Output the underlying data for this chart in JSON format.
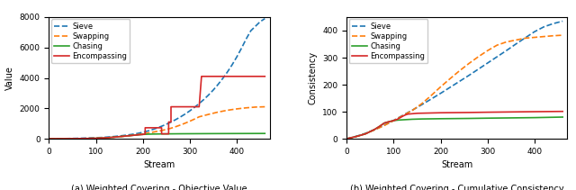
{
  "left": {
    "title": "(a) Weighted Covering - Objective Value",
    "xlabel": "Stream",
    "ylabel": "Value",
    "xlim": [
      0,
      470
    ],
    "ylim": [
      0,
      8000
    ],
    "xticks": [
      0,
      100,
      200,
      300,
      400
    ],
    "yticks": [
      0,
      2000,
      4000,
      6000,
      8000
    ],
    "sieve": {
      "x": [
        0,
        10,
        20,
        30,
        40,
        50,
        60,
        70,
        80,
        90,
        100,
        110,
        120,
        130,
        140,
        150,
        160,
        170,
        180,
        190,
        200,
        210,
        220,
        230,
        240,
        250,
        260,
        270,
        280,
        290,
        300,
        310,
        320,
        330,
        340,
        350,
        360,
        370,
        380,
        390,
        400,
        410,
        420,
        430,
        440,
        450,
        460
      ],
      "y": [
        0,
        2,
        5,
        9,
        14,
        20,
        27,
        35,
        44,
        54,
        65,
        77,
        97,
        120,
        148,
        180,
        215,
        255,
        300,
        355,
        420,
        500,
        595,
        700,
        820,
        950,
        1095,
        1255,
        1430,
        1620,
        1830,
        2060,
        2310,
        2580,
        2875,
        3200,
        3560,
        3950,
        4380,
        4850,
        5370,
        5940,
        6550,
        7100,
        7400,
        7700,
        7900
      ],
      "color": "#1f77b4",
      "linestyle": "dashed",
      "linewidth": 1.2
    },
    "swapping": {
      "x": [
        0,
        20,
        40,
        60,
        80,
        100,
        120,
        130,
        140,
        150,
        160,
        170,
        180,
        190,
        200,
        210,
        220,
        230,
        240,
        250,
        260,
        270,
        280,
        290,
        300,
        310,
        320,
        340,
        360,
        380,
        400,
        420,
        440,
        460
      ],
      "y": [
        0,
        2,
        5,
        10,
        18,
        30,
        55,
        75,
        100,
        130,
        160,
        195,
        235,
        275,
        320,
        370,
        420,
        480,
        540,
        610,
        690,
        790,
        900,
        1020,
        1150,
        1290,
        1440,
        1600,
        1750,
        1870,
        1960,
        2030,
        2080,
        2100
      ],
      "color": "#ff7f0e",
      "linestyle": "dashed",
      "linewidth": 1.2
    },
    "chasing": {
      "x": [
        0,
        20,
        40,
        60,
        80,
        100,
        110,
        120,
        130,
        140,
        150,
        160,
        170,
        180,
        190,
        200,
        210,
        220,
        230,
        240,
        260,
        280,
        300,
        350,
        400,
        460
      ],
      "y": [
        0,
        2,
        4,
        8,
        15,
        28,
        40,
        58,
        80,
        105,
        135,
        165,
        195,
        225,
        255,
        280,
        295,
        305,
        310,
        315,
        320,
        325,
        328,
        335,
        340,
        345
      ],
      "color": "#2ca02c",
      "linestyle": "solid",
      "linewidth": 1.2
    },
    "encompassing": {
      "x": [
        0,
        20,
        40,
        60,
        80,
        100,
        110,
        120,
        130,
        140,
        150,
        160,
        170,
        180,
        190,
        200,
        200,
        205,
        205,
        240,
        240,
        255,
        255,
        260,
        260,
        320,
        320,
        325,
        325,
        390,
        390,
        460
      ],
      "y": [
        0,
        2,
        4,
        8,
        15,
        28,
        40,
        58,
        80,
        105,
        135,
        165,
        195,
        225,
        255,
        280,
        295,
        295,
        720,
        720,
        320,
        320,
        1100,
        1100,
        2100,
        2100,
        2100,
        4100,
        4100,
        4100,
        4100,
        4100
      ],
      "color": "#d62728",
      "linestyle": "solid",
      "linewidth": 1.2
    },
    "legend_labels": [
      "Sieve",
      "Swapping",
      "Chasing",
      "Encompassing"
    ]
  },
  "right": {
    "title": "(b) Weighted Covering - Cumulative Consistency",
    "xlabel": "Stream",
    "ylabel": "Consistency",
    "xlim": [
      0,
      470
    ],
    "ylim": [
      0,
      450
    ],
    "xticks": [
      0,
      100,
      200,
      300,
      400
    ],
    "yticks": [
      0,
      100,
      200,
      300,
      400
    ],
    "sieve": {
      "x": [
        0,
        10,
        20,
        30,
        40,
        50,
        60,
        70,
        80,
        90,
        100,
        120,
        140,
        160,
        180,
        200,
        220,
        240,
        260,
        280,
        300,
        320,
        340,
        360,
        380,
        400,
        420,
        440,
        460
      ],
      "y": [
        0,
        4,
        9,
        14,
        20,
        27,
        34,
        42,
        50,
        59,
        68,
        87,
        106,
        126,
        147,
        168,
        190,
        212,
        234,
        257,
        280,
        303,
        326,
        350,
        373,
        396,
        414,
        426,
        435
      ],
      "color": "#1f77b4",
      "linestyle": "dashed",
      "linewidth": 1.2
    },
    "swapping": {
      "x": [
        0,
        10,
        20,
        30,
        40,
        50,
        60,
        70,
        80,
        90,
        100,
        120,
        140,
        160,
        180,
        200,
        220,
        240,
        260,
        280,
        300,
        320,
        340,
        360,
        380,
        400,
        420,
        440,
        460
      ],
      "y": [
        0,
        3,
        8,
        13,
        19,
        26,
        33,
        41,
        49,
        58,
        67,
        86,
        105,
        130,
        160,
        192,
        222,
        251,
        278,
        303,
        326,
        346,
        358,
        365,
        372,
        375,
        378,
        381,
        383
      ],
      "color": "#ff7f0e",
      "linestyle": "dashed",
      "linewidth": 1.2
    },
    "chasing": {
      "x": [
        0,
        20,
        40,
        60,
        70,
        80,
        90,
        100,
        110,
        120,
        140,
        160,
        200,
        260,
        300,
        350,
        400,
        460
      ],
      "y": [
        0,
        8,
        18,
        35,
        46,
        58,
        63,
        67,
        69,
        70,
        72,
        73,
        74,
        75,
        76,
        77,
        78,
        80
      ],
      "color": "#2ca02c",
      "linestyle": "solid",
      "linewidth": 1.2
    },
    "encompassing": {
      "x": [
        0,
        20,
        40,
        60,
        70,
        80,
        90,
        100,
        105,
        110,
        115,
        120,
        125,
        130,
        150,
        200,
        260,
        300,
        350,
        400,
        460
      ],
      "y": [
        0,
        8,
        18,
        35,
        46,
        58,
        63,
        67,
        70,
        74,
        79,
        84,
        88,
        91,
        94,
        96,
        97,
        98,
        99,
        100,
        101
      ],
      "color": "#d62728",
      "linestyle": "solid",
      "linewidth": 1.2
    },
    "legend_labels": [
      "Sieve",
      "Swapping",
      "Chasing",
      "Encompassing"
    ]
  },
  "fig_width": 6.4,
  "fig_height": 2.11,
  "dpi": 100
}
